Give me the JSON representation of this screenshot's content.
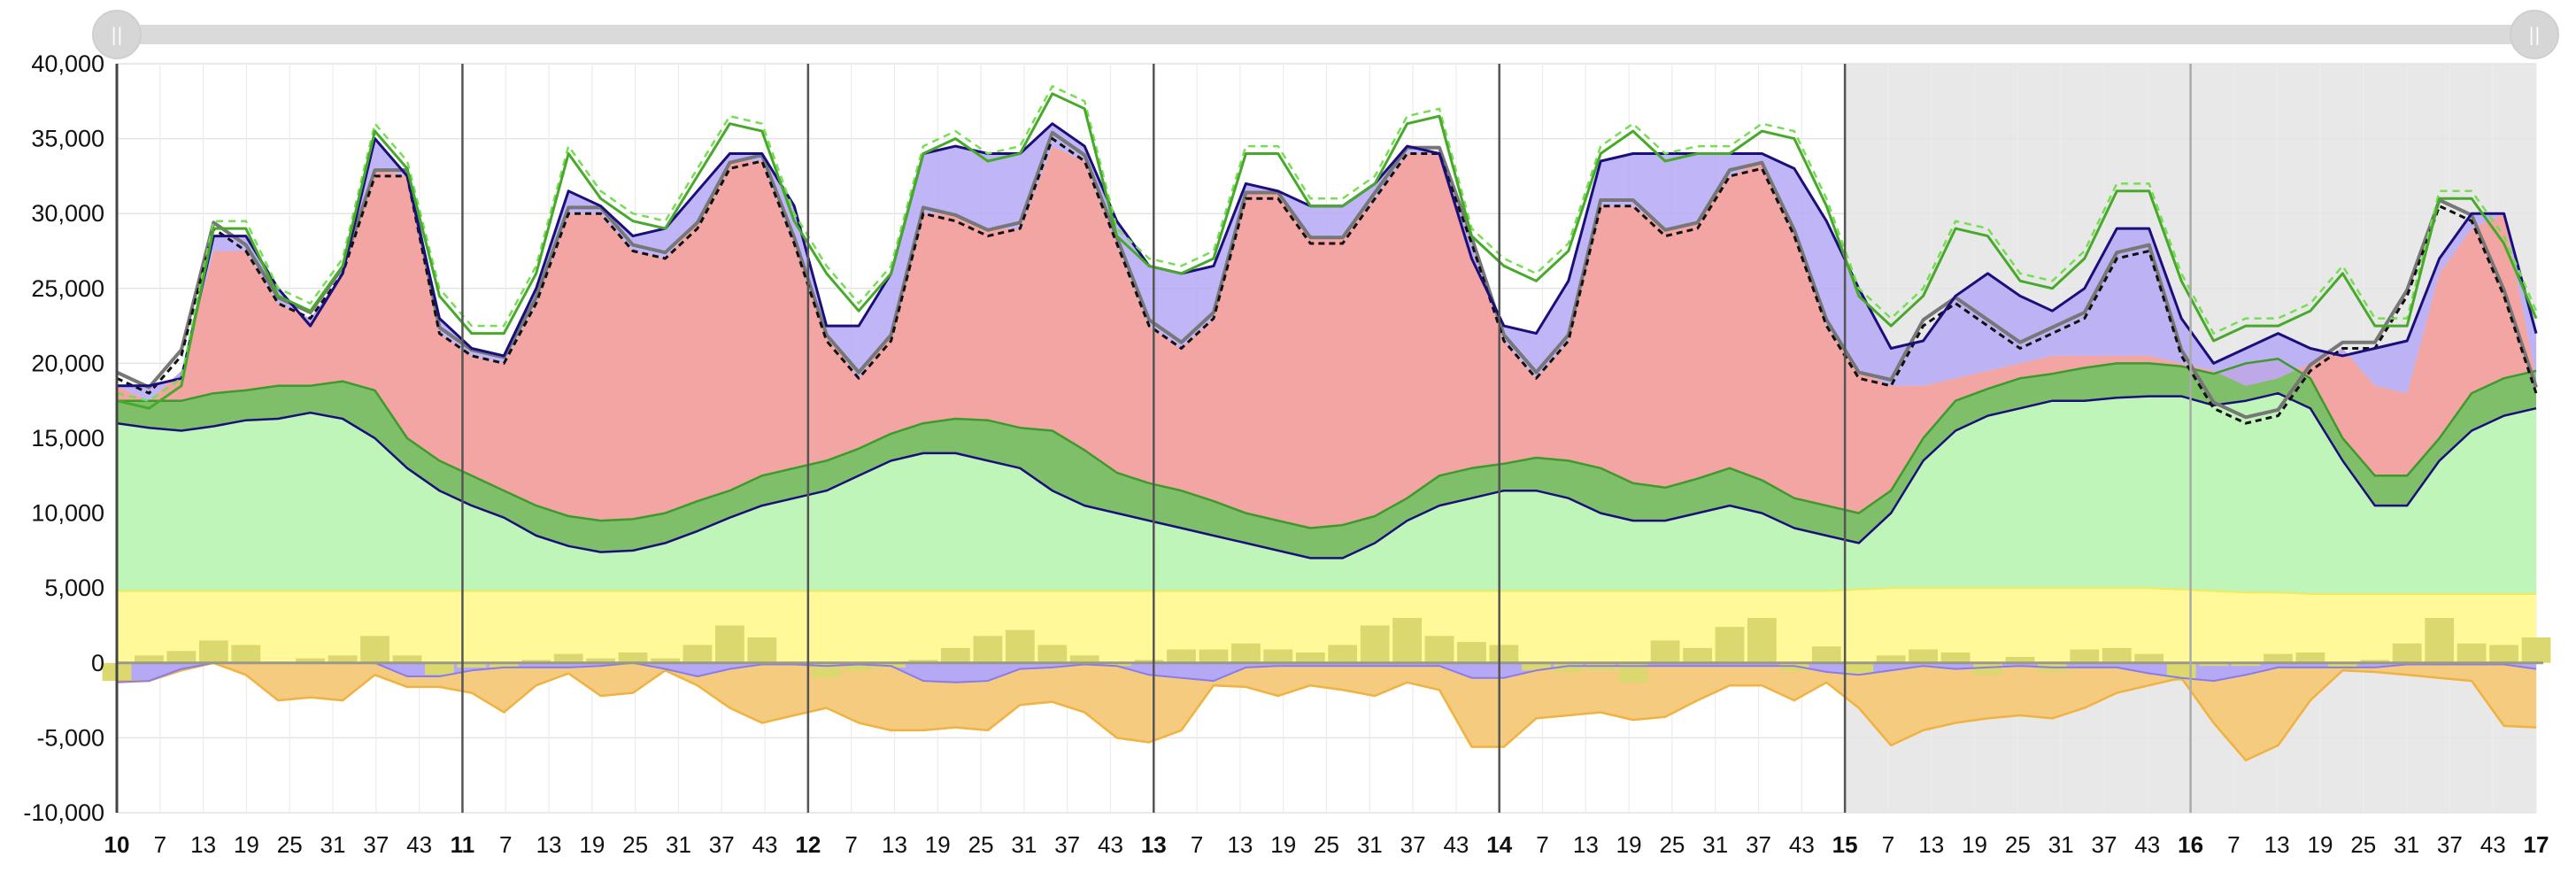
{
  "colors": {
    "green_band": "#7fbf6a",
    "green_band_edge": "#3f9a2e",
    "light_green": "#bff5b9",
    "red_area": "#f2a5a2",
    "yellow": "#fff99a",
    "orange": "#f5cb80",
    "orange_edge": "#f0b240",
    "purple": "#b5a8f5",
    "navy": "#1a0f7a",
    "green_line": "#47a92a",
    "bar": "#dcd870",
    "forecast_bg": "#e8e8e8"
  },
  "chart_data": {
    "type": "area",
    "title": "",
    "xlabel": "",
    "ylabel": "",
    "ylim": [
      -10000,
      40000
    ],
    "yticks": [
      -10000,
      -5000,
      0,
      5000,
      10000,
      15000,
      20000,
      25000,
      30000,
      35000,
      40000
    ],
    "ytick_labels": [
      "-10,000",
      "-5,000",
      "0",
      "5,000",
      "10,000",
      "15,000",
      "20,000",
      "25,000",
      "30,000",
      "35,000",
      "40,000"
    ],
    "x_unit": "hour index (4 points per hour label step of 6), 7 days",
    "xlim": [
      0,
      168
    ],
    "xtick_labels": [
      "10",
      "7",
      "13",
      "19",
      "25",
      "31",
      "37",
      "43",
      "11",
      "7",
      "13",
      "19",
      "25",
      "31",
      "37",
      "43",
      "12",
      "7",
      "13",
      "19",
      "25",
      "31",
      "37",
      "43",
      "13",
      "7",
      "13",
      "19",
      "25",
      "31",
      "37",
      "43",
      "14",
      "7",
      "13",
      "19",
      "25",
      "31",
      "37",
      "43",
      "15",
      "7",
      "13",
      "19",
      "25",
      "31",
      "37",
      "43",
      "16",
      "7",
      "13",
      "19",
      "25",
      "31",
      "37",
      "43",
      "17"
    ],
    "day_labels": [
      "10",
      "11",
      "12",
      "13",
      "14",
      "15",
      "16",
      "17"
    ],
    "forecast_start": 120,
    "grid": true,
    "series": [
      {
        "name": "",
        "role": "total_demand_green",
        "values": [
          17500,
          17000,
          18500,
          29000,
          29000,
          24500,
          23500,
          26500,
          35500,
          33000,
          24500,
          22000,
          22000,
          26000,
          34000,
          31000,
          29500,
          29000,
          32500,
          36000,
          35500,
          29500,
          26000,
          23500,
          26000,
          34000,
          35000,
          33500,
          34000,
          38000,
          37000,
          28500,
          26500,
          26000,
          27000,
          34000,
          34000,
          30500,
          30500,
          32000,
          36000,
          36500,
          28500,
          26500,
          25500,
          27500,
          34000,
          35500,
          33500,
          34000,
          34000,
          35500,
          35000,
          30500,
          24500,
          22500,
          24500,
          29000,
          28500,
          25500,
          25000,
          27000,
          31500,
          31500,
          25500,
          21500,
          22500,
          22500,
          23500,
          26000,
          22500,
          22500,
          31000,
          31000,
          28000,
          23000
        ]
      },
      {
        "name": "",
        "role": "demand_navy",
        "values": [
          18500,
          18500,
          19000,
          28500,
          28500,
          25000,
          22500,
          26000,
          35000,
          32500,
          23000,
          21000,
          20500,
          25000,
          31500,
          30500,
          28500,
          29000,
          31500,
          34000,
          34000,
          30500,
          22500,
          22500,
          26000,
          34000,
          34500,
          34000,
          34000,
          36000,
          34500,
          29500,
          26500,
          26000,
          26500,
          32000,
          31500,
          30500,
          30500,
          32000,
          34500,
          34000,
          27000,
          22500,
          22000,
          25500,
          33500,
          34000,
          34000,
          34000,
          34000,
          34000,
          33000,
          29500,
          25000,
          21000,
          21500,
          24500,
          26000,
          24500,
          23500,
          25000,
          29000,
          29000,
          23000,
          20000,
          21000,
          22000,
          21000,
          20500,
          21000,
          21500,
          27000,
          30000,
          30000,
          22000
        ]
      },
      {
        "name": "",
        "role": "price_black",
        "values": [
          19000,
          18000,
          20500,
          29000,
          27500,
          24000,
          23000,
          26000,
          32500,
          32500,
          22000,
          20500,
          20000,
          24000,
          30000,
          30000,
          27500,
          27000,
          29000,
          33000,
          33500,
          28000,
          21500,
          19000,
          21500,
          30000,
          29500,
          28500,
          29000,
          35000,
          33500,
          28000,
          22500,
          21000,
          23000,
          31000,
          31000,
          28000,
          28000,
          31000,
          34000,
          34000,
          28000,
          21500,
          19000,
          21500,
          30500,
          30500,
          28500,
          29000,
          32500,
          33000,
          28500,
          22500,
          19000,
          18500,
          22500,
          24000,
          22500,
          21000,
          22000,
          23000,
          27000,
          27500,
          20500,
          17000,
          16000,
          16500,
          19500,
          21000,
          21000,
          24500,
          30500,
          29500,
          24500,
          18000
        ]
      },
      {
        "name": "",
        "role": "red_top",
        "values": [
          18500,
          17500,
          19500,
          27500,
          27500,
          24000,
          23000,
          26000,
          33000,
          32500,
          22000,
          20500,
          20000,
          24000,
          30000,
          30000,
          27500,
          27000,
          29500,
          33500,
          33500,
          28000,
          22000,
          19000,
          22000,
          30000,
          30000,
          29000,
          29000,
          34500,
          33500,
          28000,
          22500,
          21000,
          23000,
          31500,
          31500,
          28500,
          28500,
          31000,
          34000,
          34000,
          28000,
          21500,
          19000,
          21500,
          30500,
          30500,
          29000,
          29500,
          32500,
          33500,
          29000,
          22500,
          19500,
          18500,
          18500,
          19000,
          19500,
          20000,
          20500,
          20500,
          20500,
          20500,
          20000,
          19500,
          18500,
          19000,
          20000,
          21000,
          18500,
          18000,
          26000,
          29000,
          30000,
          19000
        ]
      },
      {
        "name": "",
        "role": "green_band_top",
        "values": [
          17500,
          17500,
          17500,
          18000,
          18200,
          18500,
          18500,
          18800,
          18200,
          15000,
          13500,
          12500,
          11500,
          10500,
          9800,
          9500,
          9600,
          10000,
          10800,
          11500,
          12500,
          13000,
          13500,
          14300,
          15300,
          16000,
          16300,
          16200,
          15700,
          15500,
          14200,
          12700,
          12000,
          11500,
          10800,
          10000,
          9500,
          9000,
          9200,
          9800,
          11000,
          12500,
          13000,
          13300,
          13700,
          13500,
          13000,
          12000,
          11700,
          12300,
          13000,
          12200,
          11000,
          10500,
          10000,
          11500,
          15000,
          17500,
          18300,
          19000,
          19300,
          19700,
          20000,
          20000,
          19800,
          19300,
          20000,
          20300,
          19000,
          15000,
          12500,
          12500,
          15000,
          18000,
          19000,
          19500
        ]
      },
      {
        "name": "",
        "role": "green_band_bottom",
        "values": [
          16000,
          15700,
          15500,
          15800,
          16200,
          16300,
          16700,
          16300,
          15000,
          13000,
          11500,
          10500,
          9700,
          8500,
          7800,
          7400,
          7500,
          8000,
          8800,
          9700,
          10500,
          11000,
          11500,
          12500,
          13500,
          14000,
          14000,
          13500,
          13000,
          11500,
          10500,
          10000,
          9500,
          9000,
          8500,
          8000,
          7500,
          7000,
          7000,
          8000,
          9500,
          10500,
          11000,
          11500,
          11500,
          11000,
          10000,
          9500,
          9500,
          10000,
          10500,
          10000,
          9000,
          8500,
          8000,
          10000,
          13500,
          15500,
          16500,
          17000,
          17500,
          17500,
          17700,
          17800,
          17800,
          17200,
          17500,
          18000,
          17000,
          13500,
          10500,
          10500,
          13500,
          15500,
          16500,
          17000
        ]
      },
      {
        "name": "",
        "role": "yellow_top",
        "values": [
          4800,
          4800,
          4800,
          4800,
          4800,
          4800,
          4800,
          4800,
          4800,
          4800,
          4800,
          4800,
          4800,
          4800,
          4800,
          4800,
          4800,
          4800,
          4800,
          4800,
          4800,
          4800,
          4800,
          4800,
          4800,
          4800,
          4800,
          4800,
          4800,
          4800,
          4800,
          4800,
          4800,
          4800,
          4800,
          4800,
          4800,
          4800,
          4800,
          4800,
          4800,
          4800,
          4800,
          4800,
          4800,
          4800,
          4800,
          4800,
          4800,
          4800,
          4800,
          4800,
          4800,
          4800,
          4900,
          5000,
          5000,
          5000,
          5000,
          5000,
          5000,
          5000,
          5000,
          5000,
          4900,
          4800,
          4700,
          4700,
          4600,
          4600,
          4600,
          4600,
          4600,
          4600,
          4600,
          4600
        ]
      },
      {
        "name": "",
        "role": "orange_bottom",
        "values": [
          -1200,
          -1200,
          -500,
          0,
          -800,
          -2500,
          -2300,
          -2500,
          -800,
          -1600,
          -1600,
          -2000,
          -3300,
          -1500,
          -700,
          -2200,
          -2000,
          -500,
          -1500,
          -3000,
          -4000,
          -3500,
          -3000,
          -4000,
          -4500,
          -4500,
          -4300,
          -4500,
          -2800,
          -2600,
          -3300,
          -5000,
          -5300,
          -4500,
          -1500,
          -1600,
          -2200,
          -1500,
          -1800,
          -2200,
          -1300,
          -1800,
          -5600,
          -5600,
          -3700,
          -3500,
          -3300,
          -3800,
          -3600,
          -2500,
          -1500,
          -1500,
          -2500,
          -1300,
          -3000,
          -5500,
          -4500,
          -4000,
          -3700,
          -3500,
          -3700,
          -3000,
          -2000,
          -1500,
          -1000,
          -4000,
          -6500,
          -5500,
          -2500,
          -500,
          -600,
          -800,
          -1000,
          -1200,
          -4200,
          -4300
        ]
      },
      {
        "name": "",
        "role": "net_bars",
        "values": [
          -1200,
          500,
          800,
          1500,
          1200,
          0,
          300,
          500,
          1800,
          500,
          -800,
          -300,
          -300,
          200,
          600,
          300,
          700,
          300,
          1200,
          2500,
          1700,
          0,
          -1000,
          -500,
          -300,
          200,
          1000,
          1800,
          2200,
          1200,
          500,
          -200,
          200,
          900,
          900,
          1300,
          900,
          700,
          1200,
          2500,
          3000,
          1800,
          1400,
          1200,
          -500,
          -600,
          -500,
          -1300,
          1500,
          1000,
          2400,
          3000,
          -500,
          1100,
          -800,
          500,
          900,
          700,
          -800,
          400,
          -600,
          900,
          1000,
          600,
          -1200,
          -200,
          -200,
          600,
          700,
          -400,
          200,
          1300,
          3000,
          1300,
          1200,
          1700
        ]
      },
      {
        "name": "",
        "role": "purple_bottom",
        "values": [
          -1300,
          -1200,
          -400,
          0,
          0,
          0,
          0,
          0,
          0,
          -900,
          -900,
          -500,
          -300,
          -300,
          -300,
          -200,
          0,
          -400,
          -900,
          -400,
          -100,
          -100,
          -200,
          -100,
          -200,
          -1200,
          -1300,
          -1200,
          -400,
          -300,
          -100,
          -200,
          -800,
          -1000,
          -1200,
          -300,
          -200,
          -200,
          -200,
          -200,
          -200,
          -200,
          -1000,
          -1000,
          -500,
          -200,
          -200,
          -200,
          -200,
          -200,
          -200,
          -200,
          -200,
          -600,
          -800,
          -500,
          -200,
          -400,
          -300,
          -200,
          -300,
          -300,
          -300,
          -700,
          -1000,
          -1200,
          -800,
          -300,
          -300,
          -300,
          -300,
          -100,
          -100,
          -100,
          -100,
          -400
        ]
      }
    ]
  },
  "slider": {
    "handle_left_glyph": "||",
    "handle_right_glyph": "||"
  }
}
